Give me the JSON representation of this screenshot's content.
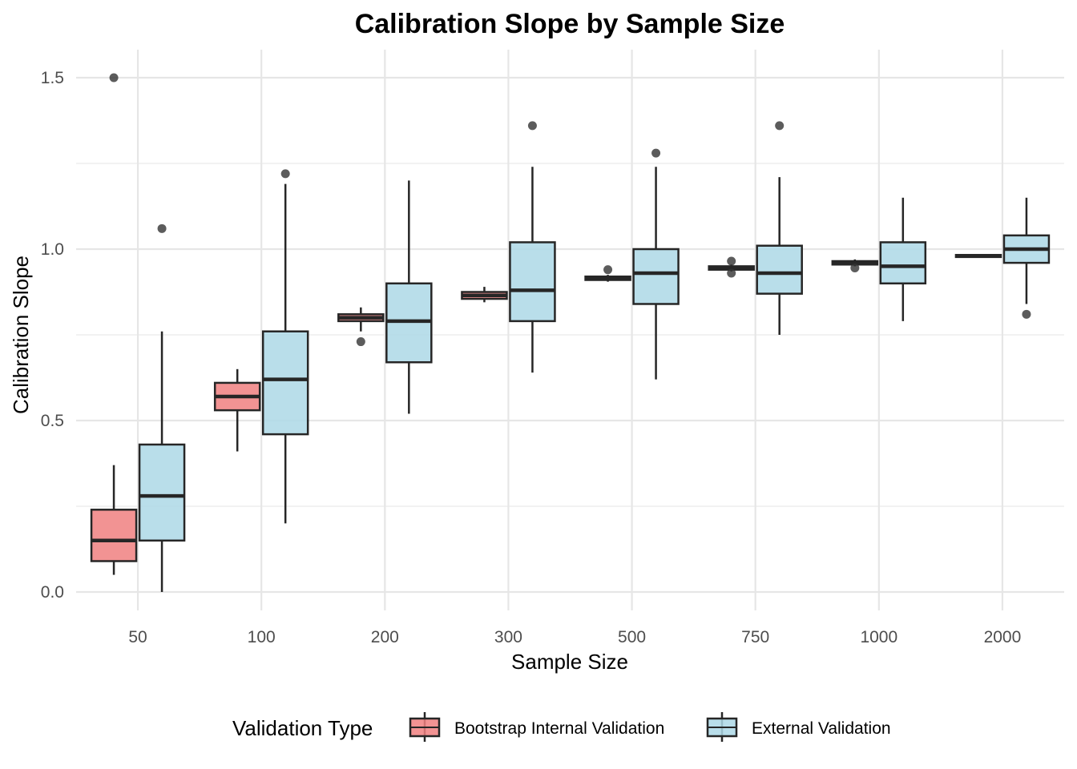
{
  "chart_data": {
    "type": "box",
    "title": "Calibration Slope by Sample Size",
    "xlabel": "Sample Size",
    "ylabel": "Calibration Slope",
    "ylim": [
      -0.06,
      1.62
    ],
    "yticks": [
      0.0,
      0.5,
      1.0,
      1.5
    ],
    "ytick_labels": [
      "0.0",
      "0.5",
      "1.0",
      "1.5"
    ],
    "categories": [
      "50",
      "100",
      "200",
      "300",
      "500",
      "750",
      "1000",
      "2000"
    ],
    "grid": true,
    "legend": {
      "title": "Validation Type",
      "position": "bottom"
    },
    "series": [
      {
        "name": "Bootstrap Internal Validation",
        "color": "#F08080",
        "boxes": [
          {
            "q1": 0.09,
            "median": 0.15,
            "q3": 0.24,
            "whisker_low": 0.05,
            "whisker_high": 0.37,
            "outliers": [
              1.5
            ]
          },
          {
            "q1": 0.53,
            "median": 0.57,
            "q3": 0.61,
            "whisker_low": 0.41,
            "whisker_high": 0.65,
            "outliers": []
          },
          {
            "q1": 0.79,
            "median": 0.8,
            "q3": 0.81,
            "whisker_low": 0.76,
            "whisker_high": 0.83,
            "outliers": [
              0.73
            ]
          },
          {
            "q1": 0.855,
            "median": 0.865,
            "q3": 0.875,
            "whisker_low": 0.845,
            "whisker_high": 0.89,
            "outliers": []
          },
          {
            "q1": 0.91,
            "median": 0.915,
            "q3": 0.92,
            "whisker_low": 0.905,
            "whisker_high": 0.925,
            "outliers": [
              0.94
            ]
          },
          {
            "q1": 0.94,
            "median": 0.945,
            "q3": 0.95,
            "whisker_low": 0.935,
            "whisker_high": 0.955,
            "outliers": [
              0.93,
              0.965
            ]
          },
          {
            "q1": 0.955,
            "median": 0.96,
            "q3": 0.965,
            "whisker_low": 0.95,
            "whisker_high": 0.97,
            "outliers": [
              0.945
            ]
          },
          {
            "q1": 0.977,
            "median": 0.98,
            "q3": 0.983,
            "whisker_low": 0.975,
            "whisker_high": 0.985,
            "outliers": []
          }
        ]
      },
      {
        "name": "External Validation",
        "color": "#ADD8E6",
        "boxes": [
          {
            "q1": 0.15,
            "median": 0.28,
            "q3": 0.43,
            "whisker_low": 0.0,
            "whisker_high": 0.76,
            "outliers": [
              1.06
            ]
          },
          {
            "q1": 0.46,
            "median": 0.62,
            "q3": 0.76,
            "whisker_low": 0.2,
            "whisker_high": 1.19,
            "outliers": [
              1.22
            ]
          },
          {
            "q1": 0.67,
            "median": 0.79,
            "q3": 0.9,
            "whisker_low": 0.52,
            "whisker_high": 1.2,
            "outliers": []
          },
          {
            "q1": 0.79,
            "median": 0.88,
            "q3": 1.02,
            "whisker_low": 0.64,
            "whisker_high": 1.24,
            "outliers": [
              1.36
            ]
          },
          {
            "q1": 0.84,
            "median": 0.93,
            "q3": 1.0,
            "whisker_low": 0.62,
            "whisker_high": 1.24,
            "outliers": [
              1.28
            ]
          },
          {
            "q1": 0.87,
            "median": 0.93,
            "q3": 1.01,
            "whisker_low": 0.75,
            "whisker_high": 1.21,
            "outliers": [
              1.36
            ]
          },
          {
            "q1": 0.9,
            "median": 0.95,
            "q3": 1.02,
            "whisker_low": 0.79,
            "whisker_high": 1.15,
            "outliers": []
          },
          {
            "q1": 0.96,
            "median": 1.0,
            "q3": 1.04,
            "whisker_low": 0.84,
            "whisker_high": 1.15,
            "outliers": [
              0.81
            ]
          }
        ]
      }
    ]
  }
}
